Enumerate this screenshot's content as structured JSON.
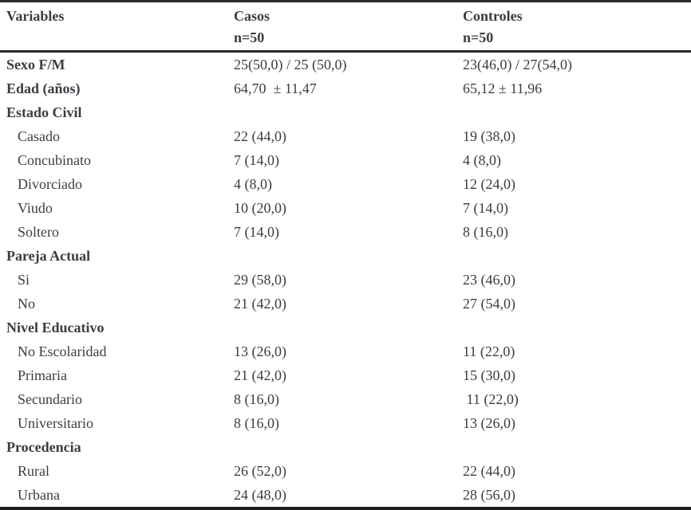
{
  "colors": {
    "text": "#3c3c44",
    "rule_top": "#2b2b2b",
    "rule_header": "#2b2b2b",
    "rule_bottom": "#1c1c1c",
    "background": "#ffffff"
  },
  "header": {
    "variables": "Variables",
    "casos": "Casos",
    "casos_n": "n=50",
    "controles": "Controles",
    "controles_n": "n=50"
  },
  "rows": [
    {
      "label": "Sexo F/M",
      "bold": true,
      "casos": "25(50,0) / 25 (50,0)",
      "controles": "23(46,0) / 27(54,0)"
    },
    {
      "label": "Edad (años)",
      "bold": true,
      "casos": "64,70  ± 11,47",
      "controles": "65,12 ± 11,96"
    },
    {
      "label": "Estado Civil",
      "bold": true,
      "casos": "",
      "controles": ""
    },
    {
      "label": "Casado",
      "bold": false,
      "casos": "22 (44,0)",
      "controles": "19 (38,0)"
    },
    {
      "label": "Concubinato",
      "bold": false,
      "casos": "7 (14,0)",
      "controles": "4 (8,0)"
    },
    {
      "label": "Divorciado",
      "bold": false,
      "casos": "4 (8,0)",
      "controles": "12 (24,0)"
    },
    {
      "label": "Viudo",
      "bold": false,
      "casos": "10 (20,0)",
      "controles": "7 (14,0)"
    },
    {
      "label": "Soltero",
      "bold": false,
      "casos": "7 (14,0)",
      "controles": "8 (16,0)"
    },
    {
      "label": "Pareja Actual",
      "bold": true,
      "casos": "",
      "controles": ""
    },
    {
      "label": "Si",
      "bold": false,
      "casos": "29 (58,0)",
      "controles": "23 (46,0)"
    },
    {
      "label": "No",
      "bold": false,
      "casos": "21 (42,0)",
      "controles": "27 (54,0)"
    },
    {
      "label": "Nivel Educativo",
      "bold": true,
      "casos": "",
      "controles": ""
    },
    {
      "label": "No Escolaridad",
      "bold": false,
      "casos": "13 (26,0)",
      "controles": "11 (22,0)"
    },
    {
      "label": "Primaria",
      "bold": false,
      "casos": "21 (42,0)",
      "controles": "15 (30,0)"
    },
    {
      "label": "Secundario",
      "bold": false,
      "casos": "8 (16,0)",
      "controles": " 11 (22,0)"
    },
    {
      "label": "Universitario",
      "bold": false,
      "casos": "8 (16,0)",
      "controles": "13 (26,0)"
    },
    {
      "label": "Procedencia",
      "bold": true,
      "casos": "",
      "controles": ""
    },
    {
      "label": "Rural",
      "bold": false,
      "casos": "26 (52,0)",
      "controles": "22 (44,0)"
    },
    {
      "label": "Urbana",
      "bold": false,
      "casos": "24 (48,0)",
      "controles": "28 (56,0)"
    }
  ]
}
